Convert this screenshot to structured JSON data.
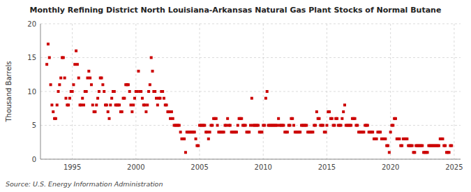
{
  "chart_data": {
    "type": "scatter",
    "title": "Monthly Refining District North Louisiana-Arkansas Natural Gas Plant Stocks of Normal Butane",
    "y_label": "Thousand Barrels",
    "source": "Source: U.S. Energy Information Administration",
    "color": "#cc0000",
    "marker": "square",
    "grid": true,
    "xlim": [
      1992.5,
      2025.5
    ],
    "ylim": [
      0,
      20
    ],
    "xticks": [
      1995,
      2000,
      2005,
      2010,
      2015,
      2020,
      2025
    ],
    "yticks": [
      0,
      5,
      10,
      15,
      20
    ],
    "x": [
      1993.0,
      1993.1,
      1993.2,
      1993.3,
      1993.4,
      1993.5,
      1993.6,
      1993.7,
      1993.8,
      1993.9,
      1994.0,
      1994.1,
      1994.2,
      1994.3,
      1994.4,
      1994.5,
      1994.6,
      1994.7,
      1994.8,
      1994.9,
      1995.0,
      1995.1,
      1995.2,
      1995.3,
      1995.4,
      1995.5,
      1995.6,
      1995.7,
      1995.8,
      1995.9,
      1996.0,
      1996.1,
      1996.2,
      1996.3,
      1996.4,
      1996.5,
      1996.6,
      1996.7,
      1996.8,
      1996.9,
      1997.0,
      1997.1,
      1997.2,
      1997.3,
      1997.4,
      1997.5,
      1997.6,
      1997.7,
      1997.8,
      1997.9,
      1998.0,
      1998.1,
      1998.2,
      1998.3,
      1998.4,
      1998.5,
      1998.6,
      1998.7,
      1998.8,
      1998.9,
      1999.0,
      1999.1,
      1999.2,
      1999.3,
      1999.4,
      1999.5,
      1999.6,
      1999.7,
      1999.8,
      1999.9,
      2000.0,
      2000.1,
      2000.2,
      2000.3,
      2000.4,
      2000.5,
      2000.6,
      2000.7,
      2000.8,
      2000.9,
      2001.0,
      2001.1,
      2001.2,
      2001.3,
      2001.4,
      2001.5,
      2001.6,
      2001.7,
      2001.8,
      2001.9,
      2002.0,
      2002.1,
      2002.2,
      2002.3,
      2002.4,
      2002.5,
      2002.6,
      2002.7,
      2002.8,
      2002.9,
      2003.0,
      2003.1,
      2003.2,
      2003.3,
      2003.4,
      2003.5,
      2003.6,
      2003.7,
      2003.8,
      2003.9,
      2004.0,
      2004.1,
      2004.2,
      2004.3,
      2004.4,
      2004.5,
      2004.6,
      2004.7,
      2004.8,
      2004.9,
      2005.0,
      2005.1,
      2005.2,
      2005.3,
      2005.4,
      2005.5,
      2005.6,
      2005.7,
      2005.8,
      2005.9,
      2006.0,
      2006.1,
      2006.2,
      2006.3,
      2006.4,
      2006.5,
      2006.6,
      2006.7,
      2006.8,
      2006.9,
      2007.0,
      2007.1,
      2007.2,
      2007.3,
      2007.4,
      2007.5,
      2007.6,
      2007.7,
      2007.8,
      2007.9,
      2008.0,
      2008.1,
      2008.2,
      2008.3,
      2008.4,
      2008.5,
      2008.6,
      2008.7,
      2008.8,
      2008.9,
      2009.0,
      2009.1,
      2009.2,
      2009.3,
      2009.4,
      2009.5,
      2009.6,
      2009.7,
      2009.8,
      2009.9,
      2010.0,
      2010.1,
      2010.2,
      2010.3,
      2010.4,
      2010.5,
      2010.6,
      2010.7,
      2010.8,
      2010.9,
      2011.0,
      2011.1,
      2011.2,
      2011.3,
      2011.4,
      2011.5,
      2011.6,
      2011.7,
      2011.8,
      2011.9,
      2012.0,
      2012.1,
      2012.2,
      2012.3,
      2012.4,
      2012.5,
      2012.6,
      2012.7,
      2012.8,
      2012.9,
      2013.0,
      2013.1,
      2013.2,
      2013.3,
      2013.4,
      2013.5,
      2013.6,
      2013.7,
      2013.8,
      2013.9,
      2014.0,
      2014.1,
      2014.2,
      2014.3,
      2014.4,
      2014.5,
      2014.6,
      2014.7,
      2014.8,
      2014.9,
      2015.0,
      2015.1,
      2015.2,
      2015.3,
      2015.4,
      2015.5,
      2015.6,
      2015.7,
      2015.8,
      2015.9,
      2016.0,
      2016.1,
      2016.2,
      2016.3,
      2016.4,
      2016.5,
      2016.6,
      2016.7,
      2016.8,
      2016.9,
      2017.0,
      2017.1,
      2017.2,
      2017.3,
      2017.4,
      2017.5,
      2017.6,
      2017.7,
      2017.8,
      2017.9,
      2018.0,
      2018.1,
      2018.2,
      2018.3,
      2018.4,
      2018.5,
      2018.6,
      2018.7,
      2018.8,
      2018.9,
      2019.0,
      2019.1,
      2019.2,
      2019.3,
      2019.4,
      2019.5,
      2019.6,
      2019.7,
      2019.8,
      2019.9,
      2020.0,
      2020.1,
      2020.2,
      2020.3,
      2020.4,
      2020.5,
      2020.6,
      2020.7,
      2020.8,
      2020.9,
      2021.0,
      2021.1,
      2021.2,
      2021.3,
      2021.4,
      2021.5,
      2021.6,
      2021.7,
      2021.8,
      2021.9,
      2022.0,
      2022.1,
      2022.2,
      2022.3,
      2022.4,
      2022.5,
      2022.6,
      2022.7,
      2022.8,
      2022.9,
      2023.0,
      2023.1,
      2023.2,
      2023.3,
      2023.4,
      2023.5,
      2023.6,
      2023.7,
      2023.8,
      2023.9,
      2024.0,
      2024.1,
      2024.2,
      2024.3,
      2024.4,
      2024.5,
      2024.6,
      2024.7,
      2024.8
    ],
    "values": [
      14,
      17,
      15,
      11,
      8,
      7,
      6,
      6,
      8,
      10,
      11,
      12,
      15,
      15,
      12,
      9,
      8,
      8,
      9,
      10,
      10,
      11,
      14,
      16,
      14,
      12,
      8,
      8,
      9,
      8,
      10,
      10,
      12,
      13,
      12,
      11,
      8,
      7,
      7,
      8,
      9,
      10,
      12,
      12,
      11,
      10,
      8,
      8,
      7,
      6,
      8,
      9,
      10,
      10,
      8,
      8,
      8,
      8,
      7,
      7,
      9,
      9,
      11,
      11,
      11,
      10,
      8,
      7,
      8,
      9,
      10,
      10,
      13,
      10,
      10,
      9,
      8,
      8,
      7,
      8,
      10,
      11,
      15,
      13,
      10,
      10,
      9,
      8,
      9,
      9,
      10,
      10,
      9,
      8,
      8,
      7,
      7,
      6,
      7,
      6,
      5,
      5,
      5,
      5,
      5,
      4,
      3,
      3,
      3,
      1,
      4,
      4,
      4,
      4,
      4,
      4,
      4,
      3,
      2,
      2,
      5,
      5,
      5,
      5,
      5,
      4,
      4,
      3,
      4,
      5,
      5,
      6,
      6,
      6,
      5,
      4,
      4,
      4,
      4,
      4,
      5,
      5,
      6,
      5,
      5,
      4,
      4,
      4,
      4,
      4,
      5,
      6,
      6,
      6,
      5,
      5,
      5,
      4,
      4,
      4,
      5,
      9,
      5,
      5,
      5,
      5,
      5,
      4,
      4,
      4,
      5,
      5,
      9,
      10,
      5,
      5,
      5,
      5,
      5,
      5,
      5,
      5,
      6,
      5,
      5,
      5,
      5,
      4,
      4,
      4,
      5,
      5,
      6,
      6,
      5,
      4,
      4,
      4,
      4,
      4,
      5,
      5,
      5,
      5,
      5,
      4,
      4,
      4,
      4,
      4,
      5,
      5,
      7,
      6,
      6,
      5,
      5,
      5,
      4,
      4,
      5,
      7,
      7,
      6,
      6,
      5,
      5,
      6,
      6,
      5,
      5,
      5,
      6,
      7,
      8,
      5,
      5,
      5,
      5,
      5,
      6,
      6,
      6,
      5,
      5,
      4,
      4,
      4,
      4,
      4,
      5,
      5,
      5,
      4,
      4,
      4,
      4,
      3,
      3,
      3,
      4,
      4,
      4,
      3,
      3,
      3,
      3,
      2,
      2,
      1,
      4,
      5,
      5,
      6,
      6,
      3,
      3,
      3,
      2,
      2,
      3,
      3,
      3,
      3,
      2,
      2,
      2,
      2,
      1,
      1,
      2,
      2,
      2,
      2,
      2,
      2,
      1,
      1,
      1,
      1,
      2,
      2,
      2,
      2,
      2,
      2,
      2,
      2,
      2,
      3,
      3,
      3,
      2,
      2,
      1,
      1,
      1,
      2,
      2
    ]
  }
}
